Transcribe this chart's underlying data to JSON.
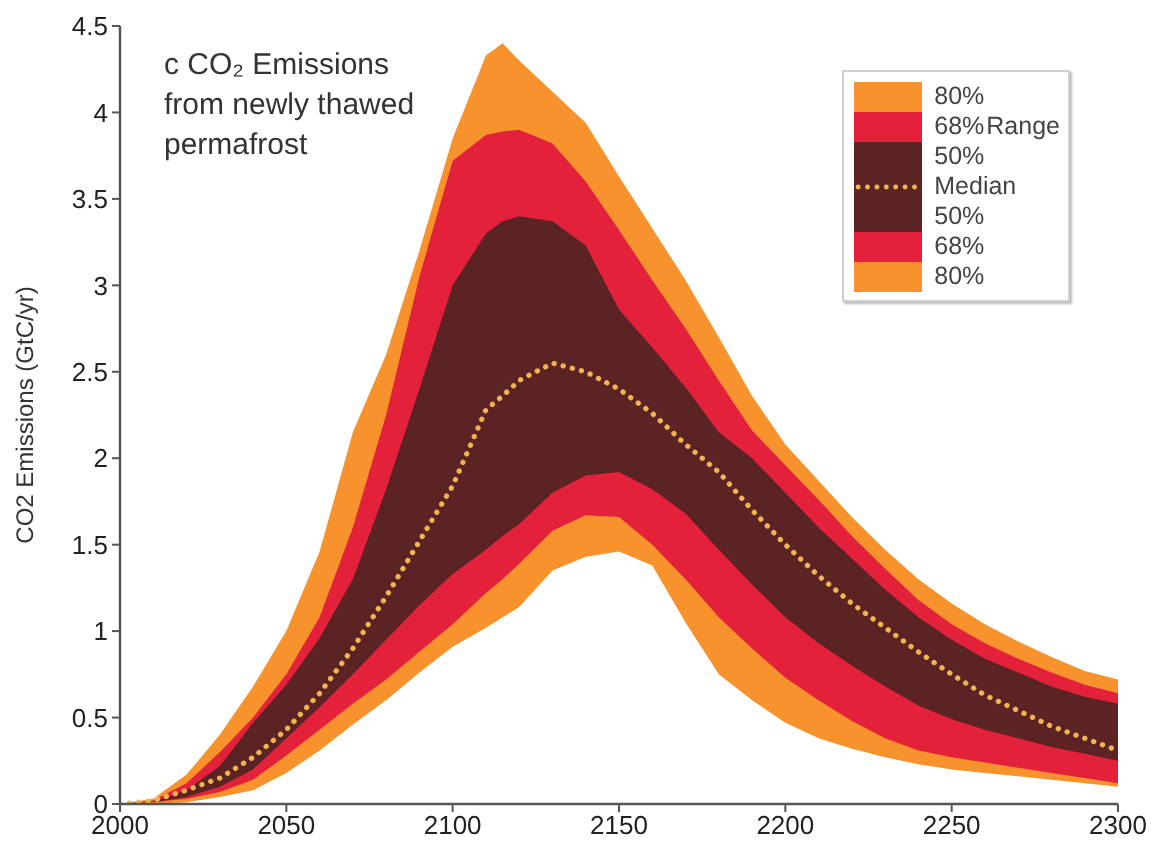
{
  "chart_data": {
    "type": "line",
    "title": "c CO₂ Emissions from newly thawed permafrost",
    "ylabel": "CO2 Emissions (GtC/yr)",
    "legend_title": "Range",
    "legend": "top right",
    "x": [
      2000,
      2010,
      2020,
      2030,
      2040,
      2050,
      2060,
      2070,
      2080,
      2090,
      2100,
      2110,
      2115,
      2120,
      2130,
      2140,
      2150,
      2160,
      2170,
      2180,
      2190,
      2200,
      2210,
      2220,
      2230,
      2240,
      2250,
      2260,
      2270,
      2280,
      2290,
      2300
    ],
    "xlim": [
      2000,
      2300
    ],
    "xticks": [
      2000,
      2050,
      2100,
      2150,
      2200,
      2250,
      2300
    ],
    "ylim": [
      0,
      4.5
    ],
    "yticks": [
      0,
      0.5,
      1,
      1.5,
      2,
      2.5,
      3,
      3.5,
      4,
      4.5
    ],
    "series": [
      {
        "name": "80%",
        "color": "#f7922d",
        "values": [
          null,
          null,
          null,
          null,
          null,
          null,
          null,
          null,
          null,
          null,
          null,
          null,
          null,
          null,
          null,
          null,
          null,
          null,
          null,
          null,
          null,
          null,
          null,
          null,
          null,
          null,
          null,
          null,
          null,
          null,
          null,
          null
        ],
        "lower": [
          0,
          0,
          0.01,
          0.04,
          0.08,
          0.18,
          0.31,
          0.46,
          0.6,
          0.76,
          0.91,
          1.02,
          1.08,
          1.14,
          1.35,
          1.43,
          1.46,
          1.38,
          1.05,
          0.75,
          0.6,
          0.47,
          0.38,
          0.32,
          0.27,
          0.23,
          0.2,
          0.18,
          0.16,
          0.14,
          0.12,
          0.1
        ],
        "upper": [
          0,
          0.03,
          0.17,
          0.4,
          0.68,
          1.0,
          1.46,
          2.15,
          2.6,
          3.2,
          3.85,
          4.33,
          4.4,
          4.3,
          4.12,
          3.94,
          3.63,
          3.33,
          3.03,
          2.7,
          2.36,
          2.08,
          1.87,
          1.66,
          1.47,
          1.3,
          1.16,
          1.04,
          0.94,
          0.85,
          0.77,
          0.72
        ]
      },
      {
        "name": "68%",
        "color": "#e4213b",
        "values": [
          null,
          null,
          null,
          null,
          null,
          null,
          null,
          null,
          null,
          null,
          null,
          null,
          null,
          null,
          null,
          null,
          null,
          null,
          null,
          null,
          null,
          null,
          null,
          null,
          null,
          null,
          null,
          null,
          null,
          null,
          null,
          null
        ],
        "lower": [
          0,
          0.01,
          0.03,
          0.07,
          0.14,
          0.28,
          0.43,
          0.58,
          0.72,
          0.88,
          1.04,
          1.22,
          1.3,
          1.39,
          1.58,
          1.67,
          1.66,
          1.5,
          1.3,
          1.08,
          0.9,
          0.73,
          0.6,
          0.48,
          0.38,
          0.31,
          0.27,
          0.24,
          0.21,
          0.18,
          0.15,
          0.12
        ],
        "upper": [
          0,
          0.02,
          0.12,
          0.3,
          0.5,
          0.75,
          1.08,
          1.6,
          2.25,
          3.05,
          3.72,
          3.87,
          3.89,
          3.9,
          3.82,
          3.6,
          3.32,
          3.03,
          2.75,
          2.45,
          2.16,
          1.96,
          1.76,
          1.55,
          1.36,
          1.18,
          1.04,
          0.93,
          0.84,
          0.76,
          0.69,
          0.64
        ]
      },
      {
        "name": "50%",
        "color": "#5c2324",
        "values": [
          null,
          null,
          null,
          null,
          null,
          null,
          null,
          null,
          null,
          null,
          null,
          null,
          null,
          null,
          null,
          null,
          null,
          null,
          null,
          null,
          null,
          null,
          null,
          null,
          null,
          null,
          null,
          null,
          null,
          null,
          null,
          null
        ],
        "lower": [
          0,
          0.01,
          0.04,
          0.1,
          0.2,
          0.38,
          0.56,
          0.75,
          0.95,
          1.15,
          1.33,
          1.47,
          1.55,
          1.62,
          1.8,
          1.9,
          1.92,
          1.82,
          1.68,
          1.47,
          1.27,
          1.08,
          0.93,
          0.8,
          0.68,
          0.57,
          0.49,
          0.43,
          0.38,
          0.33,
          0.29,
          0.25
        ],
        "upper": [
          0,
          0.01,
          0.08,
          0.22,
          0.47,
          0.69,
          0.96,
          1.3,
          1.82,
          2.4,
          3.0,
          3.3,
          3.37,
          3.4,
          3.37,
          3.23,
          2.86,
          2.64,
          2.41,
          2.15,
          2.0,
          1.8,
          1.6,
          1.42,
          1.24,
          1.08,
          0.95,
          0.84,
          0.76,
          0.68,
          0.62,
          0.58
        ]
      },
      {
        "name": "Median",
        "color": "#f0b550",
        "line_style": "dotted",
        "values": [
          0,
          0.02,
          0.08,
          0.15,
          0.27,
          0.43,
          0.64,
          0.9,
          1.2,
          1.52,
          1.84,
          2.28,
          2.36,
          2.45,
          2.55,
          2.5,
          2.4,
          2.26,
          2.08,
          1.92,
          1.7,
          1.5,
          1.32,
          1.16,
          1.02,
          0.88,
          0.75,
          0.63,
          0.54,
          0.45,
          0.38,
          0.31
        ]
      }
    ]
  }
}
